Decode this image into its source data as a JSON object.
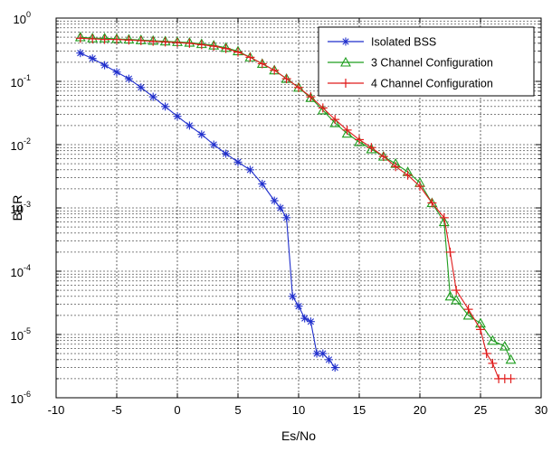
{
  "chart_data": {
    "type": "line",
    "xlabel": "Es/No",
    "ylabel": "BER",
    "xlim": [
      -10,
      30
    ],
    "ylim": [
      1e-06,
      1
    ],
    "yscale": "log",
    "grid": true,
    "legend_position": "top-right",
    "x_ticks": [
      "-10",
      "-5",
      "0",
      "5",
      "10",
      "15",
      "20",
      "25",
      "30"
    ],
    "y_ticks": [
      {
        "base": "10",
        "exp": "0"
      },
      {
        "base": "10",
        "exp": "-1"
      },
      {
        "base": "10",
        "exp": "-2"
      },
      {
        "base": "10",
        "exp": "-3"
      },
      {
        "base": "10",
        "exp": "-4"
      },
      {
        "base": "10",
        "exp": "-5"
      },
      {
        "base": "10",
        "exp": "-6"
      }
    ],
    "series": [
      {
        "name": "Isolated BSS",
        "color": "#1f2ecc",
        "marker": "star",
        "x": [
          -8,
          -7,
          -6,
          -5,
          -4,
          -3,
          -2,
          -1,
          0,
          1,
          2,
          3,
          4,
          5,
          6,
          7,
          8,
          8.5,
          9,
          9.5,
          10,
          10.5,
          11,
          11.5,
          12,
          12.5,
          13
        ],
        "y": [
          0.28,
          0.23,
          0.18,
          0.14,
          0.11,
          0.08,
          0.057,
          0.04,
          0.028,
          0.02,
          0.0145,
          0.01,
          0.0072,
          0.0053,
          0.004,
          0.0024,
          0.0013,
          0.001,
          0.0007,
          4e-05,
          2.8e-05,
          1.8e-05,
          1.6e-05,
          5e-06,
          5e-06,
          4e-06,
          3e-06
        ]
      },
      {
        "name": "3 Channel Configuration",
        "color": "#1e9e1e",
        "marker": "triangle",
        "x": [
          -8,
          -7,
          -6,
          -5,
          -4,
          -3,
          -2,
          -1,
          0,
          1,
          2,
          3,
          4,
          5,
          6,
          7,
          8,
          9,
          10,
          11,
          12,
          13,
          14,
          15,
          16,
          17,
          18,
          19,
          20,
          21,
          22,
          22.5,
          23,
          24,
          25,
          26,
          27,
          27.5
        ],
        "y": [
          0.5,
          0.48,
          0.48,
          0.47,
          0.46,
          0.45,
          0.44,
          0.43,
          0.42,
          0.41,
          0.39,
          0.37,
          0.34,
          0.3,
          0.24,
          0.19,
          0.15,
          0.11,
          0.08,
          0.055,
          0.035,
          0.022,
          0.015,
          0.011,
          0.0085,
          0.0065,
          0.005,
          0.0037,
          0.0025,
          0.0012,
          0.0006,
          4e-05,
          3.5e-05,
          2e-05,
          1.5e-05,
          8e-06,
          6.5e-06,
          4e-06
        ]
      },
      {
        "name": "4 Channel Configuration",
        "color": "#e01c1c",
        "marker": "plus",
        "x": [
          -8,
          -7,
          -6,
          -5,
          -4,
          -3,
          -2,
          -1,
          0,
          1,
          2,
          3,
          4,
          5,
          6,
          7,
          8,
          9,
          10,
          11,
          12,
          13,
          14,
          15,
          16,
          17,
          18,
          19,
          20,
          21,
          22,
          22.5,
          23,
          24,
          25,
          25.5,
          26,
          26.5,
          27,
          27.5
        ],
        "y": [
          0.48,
          0.47,
          0.46,
          0.46,
          0.45,
          0.44,
          0.43,
          0.42,
          0.41,
          0.4,
          0.38,
          0.36,
          0.33,
          0.29,
          0.24,
          0.19,
          0.15,
          0.11,
          0.08,
          0.057,
          0.038,
          0.025,
          0.017,
          0.012,
          0.009,
          0.0065,
          0.0045,
          0.0033,
          0.0022,
          0.0012,
          0.0007,
          0.0002,
          5e-05,
          2.5e-05,
          1.2e-05,
          5e-06,
          3.5e-06,
          2e-06,
          2e-06,
          2e-06
        ]
      }
    ]
  }
}
